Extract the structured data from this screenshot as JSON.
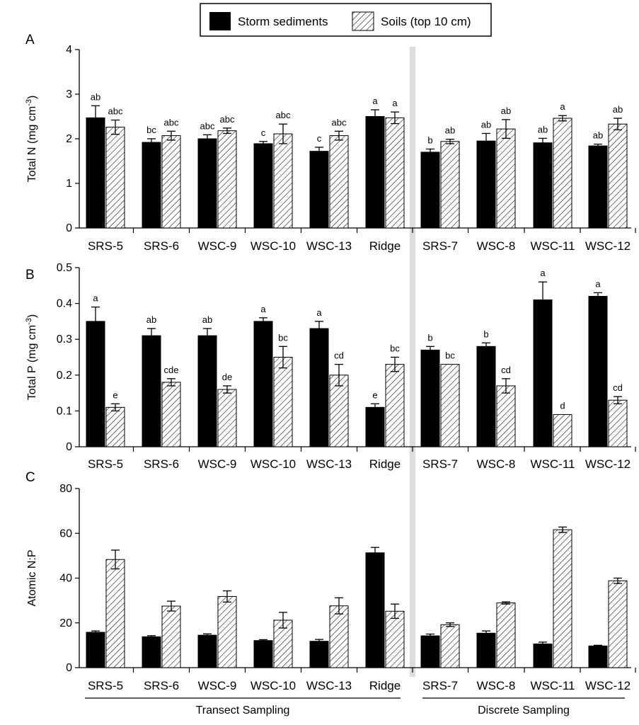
{
  "legend": {
    "storm_label": "Storm sediments",
    "soil_label": "Soils (top 10 cm)"
  },
  "groups": {
    "transect_label": "Transect Sampling",
    "discrete_label": "Discrete Sampling"
  },
  "colors": {
    "storm": "#000000",
    "soil_hatch": "#000000",
    "divider": "#dcdcdc"
  },
  "chart_data": [
    {
      "type": "bar",
      "panel": "A",
      "ylabel_main": "Total N (mg cm",
      "ylabel_sup": "-3",
      "ylabel_end": ")",
      "ylim": [
        0,
        4
      ],
      "yticks": [
        "0",
        "1",
        "2",
        "3",
        "4"
      ],
      "categories": [
        "SRS-5",
        "SRS-6",
        "WSC-9",
        "WSC-10",
        "WSC-13",
        "Ridge",
        "SRS-7",
        "WSC-8",
        "WSC-11",
        "WSC-12"
      ],
      "series": [
        {
          "name": "Storm sediments",
          "values": [
            2.47,
            1.92,
            2.0,
            1.89,
            1.72,
            2.5,
            1.7,
            1.95,
            1.91,
            1.84
          ],
          "errors": [
            0.27,
            0.08,
            0.09,
            0.05,
            0.09,
            0.15,
            0.07,
            0.17,
            0.1,
            0.04
          ],
          "sig": [
            "ab",
            "bc",
            "abc",
            "c",
            "c",
            "a",
            "b",
            "ab",
            "ab",
            "ab"
          ]
        },
        {
          "name": "Soils (top 10 cm)",
          "values": [
            2.26,
            2.07,
            2.18,
            2.11,
            2.07,
            2.47,
            1.94,
            2.22,
            2.46,
            2.33
          ],
          "errors": [
            0.16,
            0.1,
            0.06,
            0.22,
            0.1,
            0.13,
            0.05,
            0.21,
            0.06,
            0.13
          ],
          "sig": [
            "abc",
            "abc",
            "abc",
            "abc",
            "abc",
            "a",
            "ab",
            "ab",
            "a",
            "ab"
          ]
        }
      ]
    },
    {
      "type": "bar",
      "panel": "B",
      "ylabel_main": "Total P (mg cm",
      "ylabel_sup": "-3",
      "ylabel_end": ")",
      "ylim": [
        0,
        0.5
      ],
      "yticks": [
        "0",
        "0.1",
        "0.2",
        "0.3",
        "0.4",
        "0.5"
      ],
      "categories": [
        "SRS-5",
        "SRS-6",
        "WSC-9",
        "WSC-10",
        "WSC-13",
        "Ridge",
        "SRS-7",
        "WSC-8",
        "WSC-11",
        "WSC-12"
      ],
      "series": [
        {
          "name": "Storm sediments",
          "values": [
            0.35,
            0.31,
            0.31,
            0.35,
            0.33,
            0.11,
            0.27,
            0.28,
            0.41,
            0.42
          ],
          "errors": [
            0.04,
            0.02,
            0.02,
            0.01,
            0.02,
            0.01,
            0.01,
            0.01,
            0.05,
            0.01
          ],
          "sig": [
            "a",
            "ab",
            "ab",
            "a",
            "a",
            "e",
            "b",
            "b",
            "a",
            "a"
          ]
        },
        {
          "name": "Soils (top 10 cm)",
          "values": [
            0.11,
            0.18,
            0.16,
            0.25,
            0.2,
            0.23,
            0.23,
            0.17,
            0.09,
            0.13
          ],
          "errors": [
            0.01,
            0.01,
            0.01,
            0.03,
            0.03,
            0.02,
            0.0,
            0.02,
            0.0,
            0.01
          ],
          "sig": [
            "e",
            "cde",
            "de",
            "bc",
            "cd",
            "bc",
            "bc",
            "cd",
            "d",
            "cd"
          ]
        }
      ]
    },
    {
      "type": "bar",
      "panel": "C",
      "ylabel_main": "Atomic N:P",
      "ylabel_sup": "",
      "ylabel_end": "",
      "ylim": [
        0,
        80
      ],
      "yticks": [
        "0",
        "20",
        "40",
        "60",
        "80"
      ],
      "categories": [
        "SRS-5",
        "SRS-6",
        "WSC-9",
        "WSC-10",
        "WSC-13",
        "Ridge",
        "SRS-7",
        "WSC-8",
        "WSC-11",
        "WSC-12"
      ],
      "series": [
        {
          "name": "Storm sediments",
          "values": [
            15.8,
            13.8,
            14.5,
            12.1,
            11.8,
            51.3,
            14.2,
            15.4,
            10.6,
            9.7
          ],
          "errors": [
            0.6,
            0.5,
            0.6,
            0.4,
            0.8,
            2.4,
            0.8,
            1.0,
            0.8,
            0.3
          ],
          "sig": []
        },
        {
          "name": "Soils (top 10 cm)",
          "values": [
            48.3,
            27.5,
            31.8,
            21.2,
            27.6,
            25.2,
            19.2,
            28.9,
            61.6,
            38.8
          ],
          "errors": [
            4.2,
            2.2,
            2.5,
            3.5,
            3.6,
            3.2,
            0.8,
            0.5,
            1.2,
            1.2
          ],
          "sig": []
        }
      ]
    }
  ]
}
